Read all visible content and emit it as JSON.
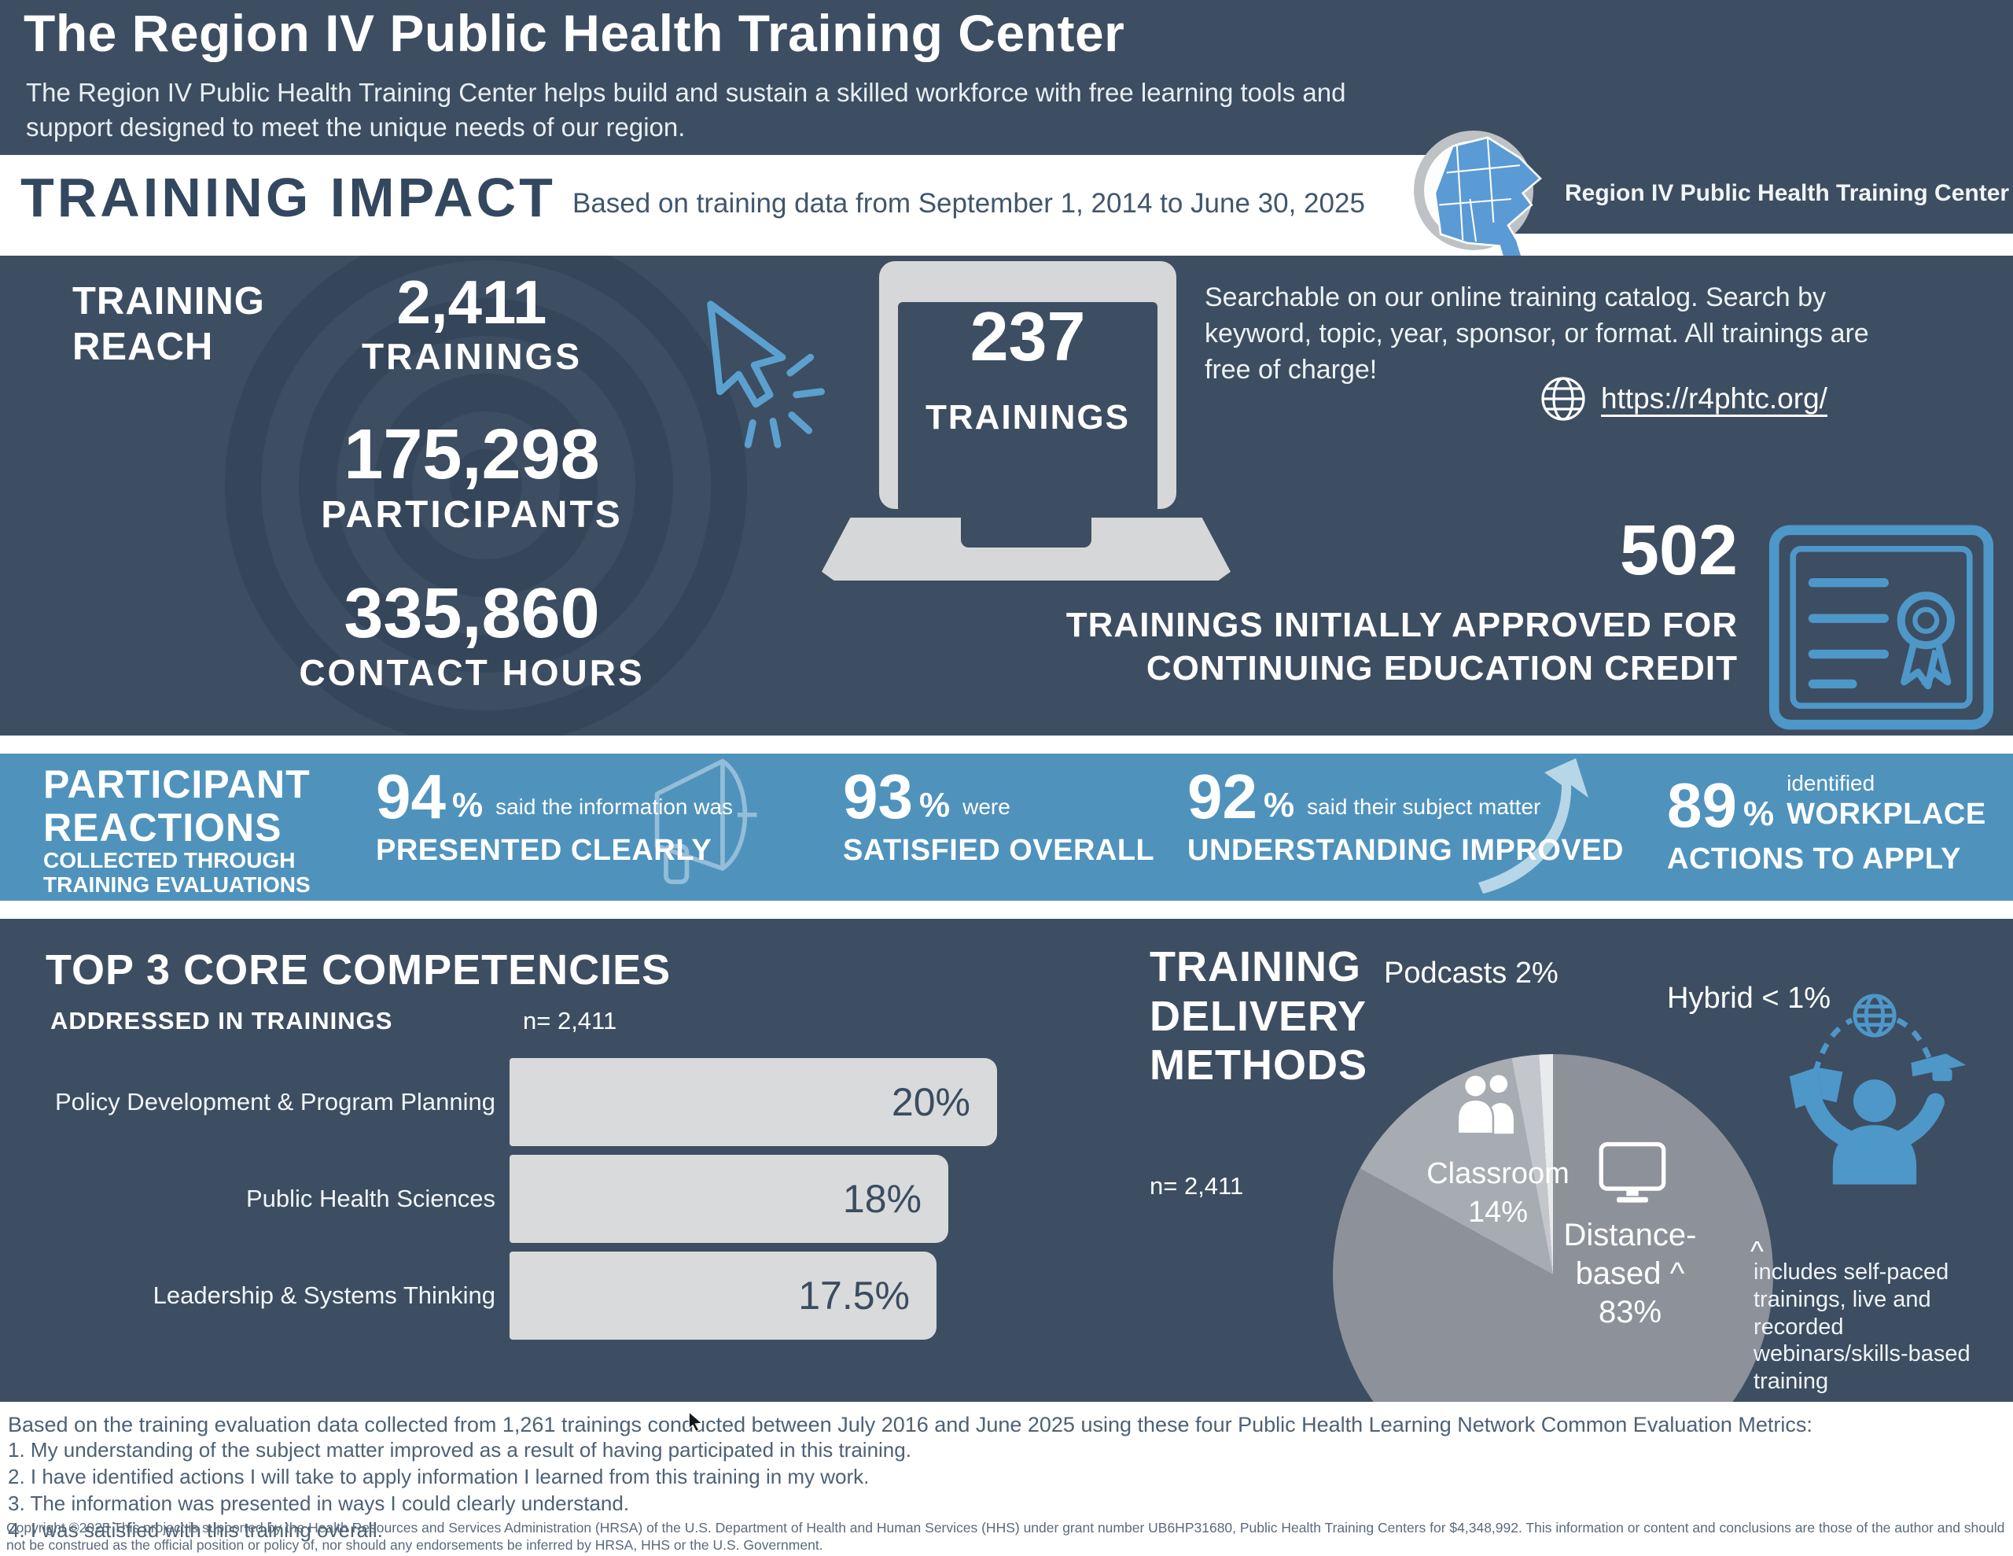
{
  "colors": {
    "navy": "#3d4e62",
    "navy_ring": "#35455a",
    "band_blue": "#4f93bd",
    "accent_blue": "#4e97c9",
    "icon_light_blue": "#5ba0cf",
    "bar_gray": "#d9dadb",
    "pie_distance": "#8d9199",
    "pie_classroom": "#a7abb2",
    "pie_podcasts": "#c3c7cc",
    "pie_hybrid": "#e8eaec"
  },
  "header": {
    "title": "The Region IV Public Health Training Center",
    "subtitle": "The Region IV Public Health Training Center helps build and sustain a skilled workforce with free learning tools and support designed to meet the unique needs of our region."
  },
  "impact": {
    "title": "TRAINING IMPACT",
    "subtitle": "Based on training data from September 1, 2014 to June 30, 2025",
    "logo_text": "Region IV Public Health Training Center"
  },
  "reach": {
    "label": "TRAINING REACH",
    "stats": [
      {
        "value": "2,411",
        "label": "TRAININGS"
      },
      {
        "value": "175,298",
        "label": "PARTICIPANTS"
      },
      {
        "value": "335,860",
        "label": "CONTACT HOURS"
      }
    ],
    "laptop": {
      "value": "237",
      "label": "TRAININGS"
    },
    "catalog_text": "Searchable on our online training catalog. Search by keyword, topic, year, sponsor, or format. All trainings are free of charge!",
    "url": "https://r4phtc.org/",
    "ce": {
      "value": "502",
      "label_line1": "TRAININGS INITIALLY APPROVED FOR",
      "label_line2": "CONTINUING EDUCATION CREDIT"
    }
  },
  "reactions": {
    "title": "PARTICIPANT REACTIONS",
    "subtitle": "COLLECTED THROUGH TRAINING EVALUATIONS",
    "stats": [
      {
        "value": "94",
        "unit": "%",
        "lead": "said the information was",
        "emphasis": "PRESENTED CLEARLY"
      },
      {
        "value": "93",
        "unit": "%",
        "lead": "were",
        "emphasis": "SATISFIED OVERALL"
      },
      {
        "value": "92",
        "unit": "%",
        "lead": "said their subject matter",
        "emphasis": "UNDERSTANDING IMPROVED"
      },
      {
        "value": "89",
        "unit": "%",
        "lead": "identified",
        "emphasis": "WORKPLACE",
        "emphasis2": "ACTIONS TO APPLY"
      }
    ]
  },
  "chart_data": [
    {
      "type": "bar",
      "title": "TOP 3 CORE COMPETENCIES",
      "subtitle": "ADDRESSED IN TRAININGS",
      "n_label": "n= 2,411",
      "categories": [
        "Policy Development & Program Planning",
        "Public Health Sciences",
        "Leadership & Systems Thinking"
      ],
      "values": [
        20,
        18,
        17.5
      ],
      "value_labels": [
        "20%",
        "18%",
        "17.5%"
      ],
      "xlim": [
        0,
        20
      ],
      "bar_color": "#d9dadb",
      "orientation": "horizontal",
      "grid": false
    },
    {
      "type": "pie",
      "title": "TRAINING DELIVERY METHODS",
      "n_label": "n= 2,411",
      "slices": [
        {
          "label": "Distance-based",
          "display_label": "Distance-based ^",
          "pct": 83,
          "pct_label": "83%",
          "color": "#8d9199"
        },
        {
          "label": "Classroom",
          "display_label": "Classroom",
          "pct": 14,
          "pct_label": "14%",
          "color": "#a7abb2"
        },
        {
          "label": "Podcasts",
          "display_label": "Podcasts",
          "pct": 2,
          "pct_label": "2%",
          "color": "#c3c7cc"
        },
        {
          "label": "Hybrid",
          "display_label": "Hybrid",
          "pct": 1,
          "pct_label": "< 1%",
          "color": "#e8eaec"
        }
      ],
      "outside_labels": [
        "Podcasts 2%",
        "Hybrid < 1%"
      ],
      "footnote_mark": "^",
      "footnote": "includes self-paced trainings,  live and recorded webinars/skills-based training",
      "legend_position": "inside"
    }
  ],
  "footer": {
    "intro": "Based on the training evaluation data collected from 1,261 trainings conducted between July 2016 and June 2025 using these four Public Health Learning Network Common Evaluation Metrics:",
    "items": [
      "1. My understanding of the subject matter improved as a result of having participated in this training.",
      "2. I have identified actions I will take to apply information I learned from this training in my work.",
      "3. The information was presented in ways I could clearly understand.",
      "4. I was satisfied with this training overall."
    ],
    "copyright": "Copyright ©2025 This project is supported by the Health Resources and Services Administration (HRSA) of the U.S. Department of Health and Human Services (HHS) under grant number UB6HP31680, Public Health Training Centers for $4,348,992. This information or content and conclusions are those of the author and should not be construed as the official position or policy of, nor should any endorsements be inferred by HRSA, HHS or the U.S. Government."
  }
}
